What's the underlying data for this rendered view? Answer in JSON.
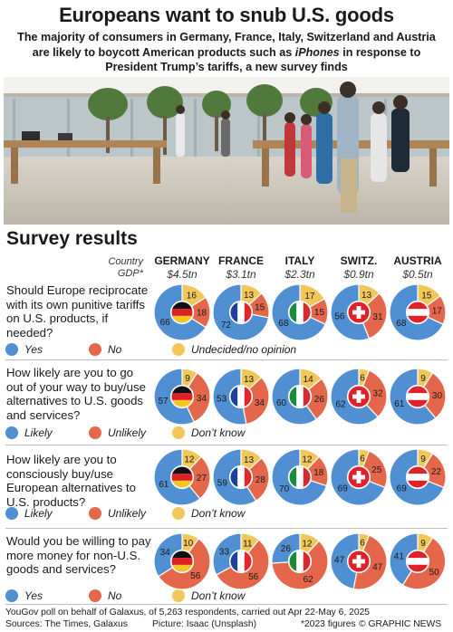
{
  "title": "Europeans want to snub U.S. goods",
  "subtitle": "The majority of consumers in Germany, France, Italy, Switzerland and Austria are likely to boycott American products such as iPhones in response to President Trump’s tariffs, a new survey finds",
  "section_title": "Survey results",
  "header": {
    "country_label": "Country",
    "gdp_label": "GDP*"
  },
  "countries": [
    {
      "name": "GERMANY",
      "gdp": "$4.5tn",
      "flag": "germany-flag"
    },
    {
      "name": "FRANCE",
      "gdp": "$3.1tn",
      "flag": "france-flag"
    },
    {
      "name": "ITALY",
      "gdp": "$2.3tn",
      "flag": "italy-flag"
    },
    {
      "name": "SWITZ.",
      "gdp": "$0.9tn",
      "flag": "switzerland-flag"
    },
    {
      "name": "AUSTRIA",
      "gdp": "$0.5tn",
      "flag": "austria-flag"
    }
  ],
  "colors": {
    "positive": "#4f8fd2",
    "negative": "#e4674b",
    "neutral": "#f2c75a"
  },
  "chart_data": {
    "type": "pie",
    "categories": [
      "GERMANY",
      "FRANCE",
      "ITALY",
      "SWITZ.",
      "AUSTRIA"
    ],
    "questions": [
      {
        "text": "Should Europe reciprocate with its own punitive tariffs on U.S. products, if needed?",
        "legend": [
          "Yes",
          "No",
          "Undecided/no opinion"
        ],
        "series": [
          {
            "name": "Yes",
            "values": [
              66,
              72,
              68,
              56,
              68
            ]
          },
          {
            "name": "No",
            "values": [
              18,
              15,
              15,
              31,
              17
            ]
          },
          {
            "name": "Undecided/no opinion",
            "values": [
              16,
              13,
              17,
              13,
              15
            ]
          }
        ]
      },
      {
        "text": "How likely are you to go out of your way to buy/use alternatives to U.S. goods and services?",
        "legend": [
          "Likely",
          "Unlikely",
          "Don’t know"
        ],
        "series": [
          {
            "name": "Likely",
            "values": [
              57,
              53,
              60,
              62,
              61
            ]
          },
          {
            "name": "Unlikely",
            "values": [
              34,
              34,
              26,
              32,
              30
            ]
          },
          {
            "name": "Don’t know",
            "values": [
              9,
              13,
              14,
              6,
              9
            ]
          }
        ]
      },
      {
        "text": "How likely are you to consciously buy/use European alternatives to U.S. products?",
        "legend": [
          "Likely",
          "Unlikely",
          "Don’t know"
        ],
        "series": [
          {
            "name": "Likely",
            "values": [
              61,
              59,
              70,
              69,
              69
            ]
          },
          {
            "name": "Unlikely",
            "values": [
              27,
              28,
              18,
              25,
              22
            ]
          },
          {
            "name": "Don’t know",
            "values": [
              12,
              13,
              12,
              6,
              9
            ]
          }
        ]
      },
      {
        "text": "Would you be willing to pay more money for non-U.S. goods and services?",
        "legend": [
          "Yes",
          "No",
          "Don’t know"
        ],
        "series": [
          {
            "name": "Yes",
            "values": [
              34,
              33,
              26,
              47,
              41
            ]
          },
          {
            "name": "No",
            "values": [
              56,
              56,
              62,
              47,
              50
            ]
          },
          {
            "name": "Don’t know",
            "values": [
              10,
              11,
              12,
              6,
              9
            ]
          }
        ]
      }
    ]
  },
  "footer": {
    "note": "YouGov poll on behalf of Galaxus, of 5,263 respondents, carried out Apr 22-May 6, 2025",
    "sources": "Sources: The Times, Galaxus",
    "picture": "Picture: Isaac (Unsplash)",
    "gdp_note": "*2023 figures",
    "brand": "© GRAPHIC NEWS"
  }
}
